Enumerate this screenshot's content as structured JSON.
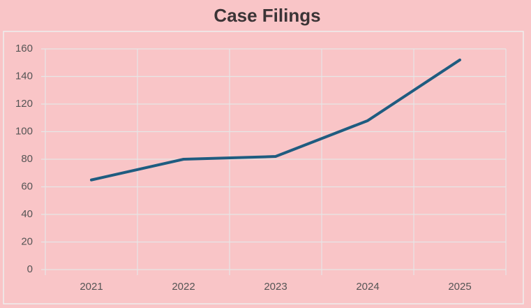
{
  "chart_data": {
    "type": "line",
    "title": "Case Filings",
    "categories": [
      "2021",
      "2022",
      "2023",
      "2024",
      "2025"
    ],
    "values": [
      65,
      80,
      82,
      108,
      152
    ],
    "color": "#1f5c80",
    "ylim": [
      0,
      160
    ],
    "yticks": [
      0,
      20,
      40,
      60,
      80,
      100,
      120,
      140,
      160
    ],
    "grid": true
  }
}
